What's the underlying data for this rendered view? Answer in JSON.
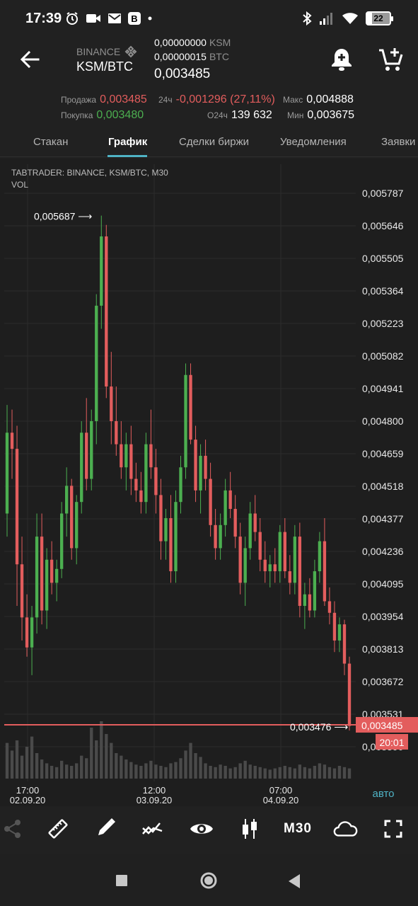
{
  "status_bar": {
    "time": "17:39",
    "battery": "22",
    "b_badge": "B"
  },
  "header": {
    "exchange": "BINANCE",
    "pair": "KSM/BTC",
    "balance1_value": "0,00000000",
    "balance1_unit": "KSM",
    "balance2_value": "0,00000015",
    "balance2_unit": "BTC",
    "last_price": "0,003485"
  },
  "stats": {
    "sell_label": "Продажа",
    "sell_value": "0,003485",
    "buy_label": "Покупка",
    "buy_value": "0,003480",
    "change_label": "24ч",
    "change_value": "-0,001296 (27,11%)",
    "volume_label": "О24ч",
    "volume_value": "139 632",
    "max_label": "Макс",
    "max_value": "0,004888",
    "min_label": "Мин",
    "min_value": "0,003675"
  },
  "tabs": [
    "Стакан",
    "График",
    "Сделки биржи",
    "Уведомления",
    "Заявки"
  ],
  "active_tab": "График",
  "chart_data": {
    "type": "candlestick",
    "title_line1": "TABTRADER: BINANCE, KSM/BTC, M30",
    "title_line2": "VOL",
    "y_ticks": [
      "0,005787",
      "0,005646",
      "0,005505",
      "0,005364",
      "0,005223",
      "0,005082",
      "0,004941",
      "0,004800",
      "0,004659",
      "0,004518",
      "0,004377",
      "0,004236",
      "0,004095",
      "0,003954",
      "0,003813",
      "0,003672",
      "0,003531",
      "0,003390"
    ],
    "y_range": [
      0.00339,
      0.005787
    ],
    "x_ticks": [
      {
        "time": "17:00",
        "date": "02.09.20"
      },
      {
        "time": "12:00",
        "date": "03.09.20"
      },
      {
        "time": "07:00",
        "date": "04.09.20"
      }
    ],
    "high_marker": "0,005687",
    "low_marker": "0,003476",
    "current_price": "0,003485",
    "countdown": "20:01",
    "auto_label": "авто",
    "up_color": "#4caf50",
    "down_color": "#e35d5d",
    "candles": [
      {
        "o": 0.0044,
        "h": 0.00487,
        "l": 0.0043,
        "c": 0.00475,
        "v": 0.28
      },
      {
        "o": 0.00475,
        "h": 0.00485,
        "l": 0.00455,
        "c": 0.00468,
        "v": 0.22
      },
      {
        "o": 0.00468,
        "h": 0.00478,
        "l": 0.004,
        "c": 0.00418,
        "v": 0.3
      },
      {
        "o": 0.00418,
        "h": 0.0043,
        "l": 0.00385,
        "c": 0.00395,
        "v": 0.18
      },
      {
        "o": 0.00395,
        "h": 0.00405,
        "l": 0.00378,
        "c": 0.00382,
        "v": 0.25
      },
      {
        "o": 0.00382,
        "h": 0.004,
        "l": 0.0037,
        "c": 0.00395,
        "v": 0.33
      },
      {
        "o": 0.00395,
        "h": 0.0044,
        "l": 0.00388,
        "c": 0.0043,
        "v": 0.2
      },
      {
        "o": 0.0043,
        "h": 0.0044,
        "l": 0.00392,
        "c": 0.00398,
        "v": 0.15
      },
      {
        "o": 0.00398,
        "h": 0.00425,
        "l": 0.0039,
        "c": 0.0042,
        "v": 0.12
      },
      {
        "o": 0.0042,
        "h": 0.00428,
        "l": 0.00405,
        "c": 0.0041,
        "v": 0.1
      },
      {
        "o": 0.0041,
        "h": 0.0042,
        "l": 0.00402,
        "c": 0.00416,
        "v": 0.09
      },
      {
        "o": 0.00416,
        "h": 0.00445,
        "l": 0.00412,
        "c": 0.0044,
        "v": 0.14
      },
      {
        "o": 0.0044,
        "h": 0.0046,
        "l": 0.0043,
        "c": 0.00452,
        "v": 0.11
      },
      {
        "o": 0.00452,
        "h": 0.00455,
        "l": 0.0042,
        "c": 0.00425,
        "v": 0.1
      },
      {
        "o": 0.00425,
        "h": 0.00448,
        "l": 0.00418,
        "c": 0.00445,
        "v": 0.12
      },
      {
        "o": 0.00445,
        "h": 0.0048,
        "l": 0.0044,
        "c": 0.00475,
        "v": 0.18
      },
      {
        "o": 0.00475,
        "h": 0.0049,
        "l": 0.0045,
        "c": 0.00455,
        "v": 0.16
      },
      {
        "o": 0.00455,
        "h": 0.00485,
        "l": 0.0045,
        "c": 0.0048,
        "v": 0.4
      },
      {
        "o": 0.0048,
        "h": 0.00535,
        "l": 0.0047,
        "c": 0.0053,
        "v": 0.3
      },
      {
        "o": 0.0053,
        "h": 0.00569,
        "l": 0.0052,
        "c": 0.0056,
        "v": 0.45
      },
      {
        "o": 0.0056,
        "h": 0.00565,
        "l": 0.0049,
        "c": 0.00495,
        "v": 0.35
      },
      {
        "o": 0.00495,
        "h": 0.0051,
        "l": 0.0047,
        "c": 0.0048,
        "v": 0.28
      },
      {
        "o": 0.0048,
        "h": 0.00495,
        "l": 0.00465,
        "c": 0.0047,
        "v": 0.2
      },
      {
        "o": 0.0047,
        "h": 0.0048,
        "l": 0.00455,
        "c": 0.0046,
        "v": 0.18
      },
      {
        "o": 0.0046,
        "h": 0.00475,
        "l": 0.0045,
        "c": 0.0047,
        "v": 0.15
      },
      {
        "o": 0.0047,
        "h": 0.00478,
        "l": 0.00448,
        "c": 0.00455,
        "v": 0.13
      },
      {
        "o": 0.00455,
        "h": 0.00462,
        "l": 0.00445,
        "c": 0.0045,
        "v": 0.11
      },
      {
        "o": 0.0045,
        "h": 0.00458,
        "l": 0.0044,
        "c": 0.00445,
        "v": 0.1
      },
      {
        "o": 0.00445,
        "h": 0.00475,
        "l": 0.0044,
        "c": 0.0047,
        "v": 0.12
      },
      {
        "o": 0.0047,
        "h": 0.00485,
        "l": 0.00455,
        "c": 0.0046,
        "v": 0.14
      },
      {
        "o": 0.0046,
        "h": 0.00468,
        "l": 0.0044,
        "c": 0.00448,
        "v": 0.11
      },
      {
        "o": 0.00448,
        "h": 0.00455,
        "l": 0.0042,
        "c": 0.00428,
        "v": 0.1
      },
      {
        "o": 0.00428,
        "h": 0.00442,
        "l": 0.0042,
        "c": 0.00438,
        "v": 0.09
      },
      {
        "o": 0.00438,
        "h": 0.00448,
        "l": 0.0041,
        "c": 0.00415,
        "v": 0.12
      },
      {
        "o": 0.00415,
        "h": 0.0045,
        "l": 0.0041,
        "c": 0.00445,
        "v": 0.13
      },
      {
        "o": 0.00445,
        "h": 0.00465,
        "l": 0.0044,
        "c": 0.0046,
        "v": 0.16
      },
      {
        "o": 0.0046,
        "h": 0.00505,
        "l": 0.00455,
        "c": 0.005,
        "v": 0.22
      },
      {
        "o": 0.005,
        "h": 0.00505,
        "l": 0.0047,
        "c": 0.00472,
        "v": 0.28
      },
      {
        "o": 0.00472,
        "h": 0.00478,
        "l": 0.00445,
        "c": 0.0045,
        "v": 0.2
      },
      {
        "o": 0.0045,
        "h": 0.0047,
        "l": 0.0044,
        "c": 0.00465,
        "v": 0.17
      },
      {
        "o": 0.00465,
        "h": 0.00472,
        "l": 0.0045,
        "c": 0.00455,
        "v": 0.12
      },
      {
        "o": 0.00455,
        "h": 0.00462,
        "l": 0.0043,
        "c": 0.00435,
        "v": 0.1
      },
      {
        "o": 0.00435,
        "h": 0.00442,
        "l": 0.0042,
        "c": 0.00425,
        "v": 0.09
      },
      {
        "o": 0.00425,
        "h": 0.0044,
        "l": 0.0042,
        "c": 0.00435,
        "v": 0.11
      },
      {
        "o": 0.00435,
        "h": 0.00455,
        "l": 0.0043,
        "c": 0.0045,
        "v": 0.1
      },
      {
        "o": 0.0045,
        "h": 0.00458,
        "l": 0.00438,
        "c": 0.00442,
        "v": 0.08
      },
      {
        "o": 0.00442,
        "h": 0.00448,
        "l": 0.00425,
        "c": 0.0043,
        "v": 0.09
      },
      {
        "o": 0.0043,
        "h": 0.00436,
        "l": 0.00405,
        "c": 0.0041,
        "v": 0.12
      },
      {
        "o": 0.0041,
        "h": 0.0043,
        "l": 0.004,
        "c": 0.00425,
        "v": 0.14
      },
      {
        "o": 0.00425,
        "h": 0.00445,
        "l": 0.0042,
        "c": 0.0044,
        "v": 0.11
      },
      {
        "o": 0.0044,
        "h": 0.00448,
        "l": 0.00428,
        "c": 0.00432,
        "v": 0.1
      },
      {
        "o": 0.00432,
        "h": 0.00438,
        "l": 0.00415,
        "c": 0.0042,
        "v": 0.09
      },
      {
        "o": 0.0042,
        "h": 0.00428,
        "l": 0.0041,
        "c": 0.00415,
        "v": 0.08
      },
      {
        "o": 0.00415,
        "h": 0.00422,
        "l": 0.00408,
        "c": 0.00418,
        "v": 0.07
      },
      {
        "o": 0.00418,
        "h": 0.00425,
        "l": 0.0041,
        "c": 0.00415,
        "v": 0.08
      },
      {
        "o": 0.00415,
        "h": 0.00435,
        "l": 0.0041,
        "c": 0.00432,
        "v": 0.09
      },
      {
        "o": 0.00432,
        "h": 0.00438,
        "l": 0.00412,
        "c": 0.00415,
        "v": 0.1
      },
      {
        "o": 0.00415,
        "h": 0.00422,
        "l": 0.00405,
        "c": 0.0041,
        "v": 0.09
      },
      {
        "o": 0.0041,
        "h": 0.00435,
        "l": 0.00405,
        "c": 0.0043,
        "v": 0.08
      },
      {
        "o": 0.0043,
        "h": 0.00436,
        "l": 0.00395,
        "c": 0.004,
        "v": 0.11
      },
      {
        "o": 0.004,
        "h": 0.0041,
        "l": 0.0039,
        "c": 0.00405,
        "v": 0.09
      },
      {
        "o": 0.00405,
        "h": 0.00412,
        "l": 0.00395,
        "c": 0.00398,
        "v": 0.08
      },
      {
        "o": 0.00398,
        "h": 0.0042,
        "l": 0.00395,
        "c": 0.00415,
        "v": 0.1
      },
      {
        "o": 0.00415,
        "h": 0.00432,
        "l": 0.0041,
        "c": 0.00428,
        "v": 0.12
      },
      {
        "o": 0.00428,
        "h": 0.00438,
        "l": 0.004,
        "c": 0.00402,
        "v": 0.11
      },
      {
        "o": 0.00402,
        "h": 0.00408,
        "l": 0.00392,
        "c": 0.00397,
        "v": 0.09
      },
      {
        "o": 0.00397,
        "h": 0.00402,
        "l": 0.0038,
        "c": 0.00385,
        "v": 0.08
      },
      {
        "o": 0.00385,
        "h": 0.00395,
        "l": 0.0038,
        "c": 0.00392,
        "v": 0.1
      },
      {
        "o": 0.00392,
        "h": 0.00394,
        "l": 0.0037,
        "c": 0.00375,
        "v": 0.09
      },
      {
        "o": 0.00375,
        "h": 0.00378,
        "l": 0.00346,
        "c": 0.00348,
        "v": 0.08
      }
    ]
  },
  "toolbar": {
    "share_icon": "share-icon",
    "ruler_icon": "ruler-icon",
    "pencil_icon": "pencil-icon",
    "indicators_icon": "indicators-icon",
    "eye_icon": "eye-icon",
    "candles_icon": "candles-icon",
    "timeframe": "M30",
    "cloud_icon": "cloud-icon",
    "fullscreen_icon": "fullscreen-icon"
  },
  "navbar": {
    "recent": "square-icon",
    "home": "circle-icon",
    "back": "triangle-icon"
  }
}
